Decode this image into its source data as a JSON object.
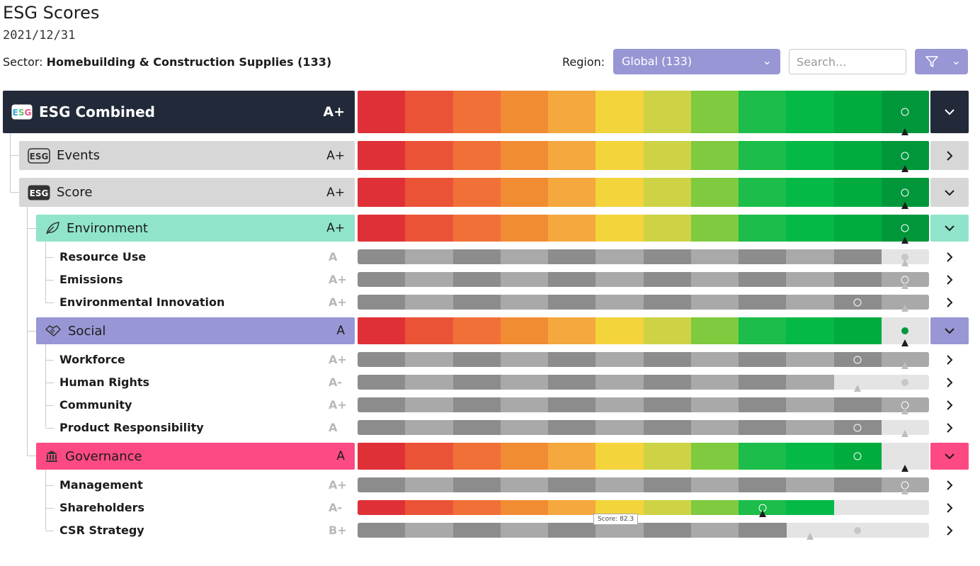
{
  "header": {
    "title": "ESG Scores",
    "date": "2021/12/31",
    "sector_label": "Sector:",
    "sector_value": "Homebuilding & Construction Supplies (133)",
    "region_label": "Region:",
    "region_value": "Global (133)",
    "search_placeholder": "Search..."
  },
  "colors": {
    "palette": [
      "#df3038",
      "#eb5337",
      "#f07038",
      "#f28c33",
      "#f4a83d",
      "#f4d43b",
      "#cdd345",
      "#7fca3f",
      "#1cbd4a",
      "#04b946",
      "#01ac3f",
      "#00973b"
    ],
    "greys": [
      "#8c8c8c",
      "#a9a9a9"
    ],
    "empty": "#e4e4e4",
    "combined_bg": "#222a3a",
    "pillar_bg": "#d7d7d7",
    "environment_bg": "#90e4cc",
    "social_bg": "#9896d4",
    "governance_bg": "#fe4a82"
  },
  "rows": [
    {
      "label": "ESG Combined",
      "grade": "A+",
      "level": "combined",
      "icon": "esg-logo-icon"
    },
    {
      "label": "Events",
      "grade": "A+",
      "level": "pillar",
      "icon": "esg-outline-icon"
    },
    {
      "label": "Score",
      "grade": "A+",
      "level": "pillar",
      "icon": "esg-solid-icon"
    },
    {
      "label": "Environment",
      "grade": "A+",
      "level": "category",
      "icon": "leaf-icon"
    },
    {
      "label": "Resource Use",
      "grade": "A",
      "level": "sub"
    },
    {
      "label": "Emissions",
      "grade": "A+",
      "level": "sub"
    },
    {
      "label": "Environmental Innovation",
      "grade": "A+",
      "level": "sub"
    },
    {
      "label": "Social",
      "grade": "A",
      "level": "category",
      "icon": "handshake-icon"
    },
    {
      "label": "Workforce",
      "grade": "A+",
      "level": "sub"
    },
    {
      "label": "Human Rights",
      "grade": "A-",
      "level": "sub"
    },
    {
      "label": "Community",
      "grade": "A+",
      "level": "sub"
    },
    {
      "label": "Product Responsibility",
      "grade": "A",
      "level": "sub"
    },
    {
      "label": "Governance",
      "grade": "A",
      "level": "category",
      "icon": "government-building-icon"
    },
    {
      "label": "Management",
      "grade": "A+",
      "level": "sub"
    },
    {
      "label": "Shareholders",
      "grade": "A-",
      "level": "sub"
    },
    {
      "label": "CSR Strategy",
      "grade": "B+",
      "level": "sub"
    }
  ],
  "tooltip": "Score: 82.3"
}
